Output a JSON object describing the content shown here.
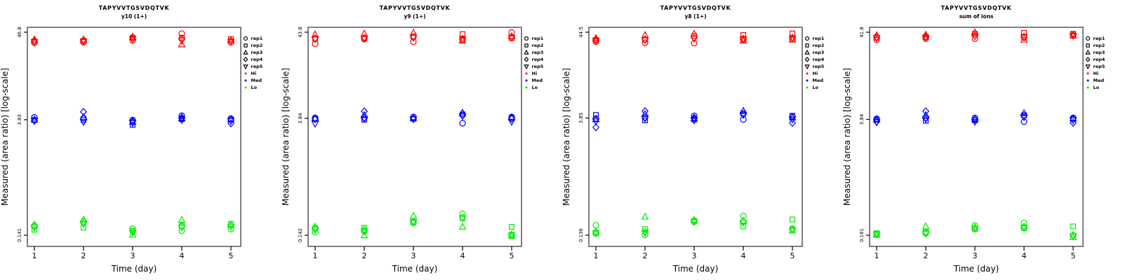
{
  "figure": {
    "title": "TAPYVVTGSVDQTVK",
    "xlabel": "Time (day)",
    "ylabel": "Measured (area ratio) [log-scale]"
  },
  "legend": {
    "items": [
      {
        "label": "rep1",
        "marker": "circle",
        "kind": "rep"
      },
      {
        "label": "rep2",
        "marker": "square",
        "kind": "rep"
      },
      {
        "label": "rep3",
        "marker": "triangle-up",
        "kind": "rep"
      },
      {
        "label": "rep4",
        "marker": "diamond",
        "kind": "rep"
      },
      {
        "label": "rep5",
        "marker": "triangle-down",
        "kind": "rep"
      },
      {
        "label": "Hi",
        "dot": "#FF0000",
        "kind": "level"
      },
      {
        "label": "Med",
        "dot": "#0000FF",
        "kind": "level"
      },
      {
        "label": "Lo",
        "dot": "#00EE00",
        "kind": "level"
      }
    ]
  },
  "chart_data": [
    {
      "type": "scatter",
      "title": "TAPYVVTGSVDQTVK",
      "subtitle": "y10 (1+)",
      "xlabel": "Time (day)",
      "ylabel": "Measured (area ratio) [log-scale]",
      "x": [
        1,
        2,
        3,
        4,
        5
      ],
      "yscale": "log",
      "yticks": [
        46.8,
        3.83,
        0.141
      ],
      "ytick_labels": [
        "46.8",
        "3.83",
        "0.141"
      ],
      "replicates": [
        "rep1",
        "rep2",
        "rep3",
        "rep4",
        "rep5"
      ],
      "markers": [
        "circle",
        "square",
        "triangle-up",
        "diamond",
        "triangle-down"
      ],
      "series": [
        {
          "name": "Hi",
          "color": "#FF0000",
          "values": [
            [
              34.5,
              36.0,
              38.0,
              36.5,
              35.5
            ],
            [
              35.0,
              36.5,
              38.0,
              37.0,
              36.0
            ],
            [
              37.0,
              40.0,
              41.0,
              39.0,
              38.5
            ],
            [
              45.0,
              40.0,
              33.0,
              38.0,
              37.0
            ],
            [
              34.8,
              38.5,
              37.0,
              36.5,
              36.0
            ]
          ]
        },
        {
          "name": "Med",
          "color": "#0000FF",
          "values": [
            [
              4.1,
              3.8,
              3.85,
              3.75,
              3.7
            ],
            [
              4.0,
              3.8,
              4.1,
              4.8,
              3.6
            ],
            [
              3.8,
              3.3,
              3.6,
              3.7,
              3.5
            ],
            [
              4.3,
              3.9,
              4.0,
              4.1,
              3.8
            ],
            [
              3.95,
              3.85,
              3.9,
              3.45,
              3.7
            ]
          ]
        },
        {
          "name": "Lo",
          "color": "#00EE00",
          "values": [
            [
              0.185,
              0.165,
              0.19,
              0.18,
              0.175
            ],
            [
              0.21,
              0.175,
              0.22,
              0.2,
              0.195
            ],
            [
              0.17,
              0.16,
              0.143,
              0.158,
              0.152
            ],
            [
              0.16,
              0.185,
              0.218,
              0.18,
              0.175
            ],
            [
              0.168,
              0.195,
              0.19,
              0.185,
              0.18
            ]
          ]
        }
      ]
    },
    {
      "type": "scatter",
      "title": "TAPYVVTGSVDQTVK",
      "subtitle": "y9 (1+)",
      "xlabel": "Time (day)",
      "ylabel": "Measured (area ratio) [log-scale]",
      "x": [
        1,
        2,
        3,
        4,
        5
      ],
      "yscale": "log",
      "yticks": [
        43.8,
        3.84,
        0.142
      ],
      "ytick_labels": [
        "43.8",
        "3.84",
        "0.142"
      ],
      "replicates": [
        "rep1",
        "rep2",
        "rep3",
        "rep4",
        "rep5"
      ],
      "markers": [
        "circle",
        "square",
        "triangle-up",
        "diamond",
        "triangle-down"
      ],
      "series": [
        {
          "name": "Hi",
          "color": "#FF0000",
          "values": [
            [
              31.5,
              36.5,
              41.0,
              37.0,
              36.0
            ],
            [
              36.0,
              37.0,
              42.0,
              37.5,
              36.5
            ],
            [
              33.5,
              39.0,
              43.0,
              38.0,
              37.5
            ],
            [
              35.0,
              41.5,
              34.5,
              36.5,
              36.0
            ],
            [
              43.5,
              37.0,
              39.0,
              38.0,
              37.5
            ]
          ]
        },
        {
          "name": "Med",
          "color": "#0000FF",
          "values": [
            [
              3.9,
              3.8,
              3.85,
              3.75,
              3.3
            ],
            [
              3.9,
              3.7,
              4.2,
              4.7,
              3.8
            ],
            [
              4.0,
              3.8,
              3.9,
              3.85,
              3.75
            ],
            [
              3.35,
              4.3,
              4.5,
              4.2,
              4.1
            ],
            [
              4.0,
              3.9,
              3.95,
              3.8,
              3.5
            ]
          ]
        },
        {
          "name": "Lo",
          "color": "#00EE00",
          "values": [
            [
              0.155,
              0.172,
              0.18,
              0.17,
              0.165
            ],
            [
              0.16,
              0.175,
              0.141,
              0.165,
              0.158
            ],
            [
              0.2,
              0.207,
              0.245,
              0.21,
              0.205
            ],
            [
              0.26,
              0.228,
              0.18,
              0.235,
              0.23
            ],
            [
              0.142,
              0.18,
              0.139,
              0.145,
              0.143
            ]
          ]
        }
      ]
    },
    {
      "type": "scatter",
      "title": "TAPYVVTGSVDQTVK",
      "subtitle": "y8 (1+)",
      "xlabel": "Time (day)",
      "ylabel": "Measured (area ratio) [log-scale]",
      "x": [
        1,
        2,
        3,
        4,
        5
      ],
      "yscale": "log",
      "yticks": [
        44.5,
        3.85,
        0.136
      ],
      "ytick_labels": [
        "44.5",
        "3.85",
        "0.136"
      ],
      "replicates": [
        "rep1",
        "rep2",
        "rep3",
        "rep4",
        "rep5"
      ],
      "markers": [
        "circle",
        "square",
        "triangle-up",
        "diamond",
        "triangle-down"
      ],
      "series": [
        {
          "name": "Hi",
          "color": "#FF0000",
          "values": [
            [
              34.0,
              35.5,
              37.5,
              36.0,
              35.0
            ],
            [
              33.0,
              36.0,
              41.0,
              36.5,
              35.5
            ],
            [
              32.6,
              40.0,
              42.5,
              38.0,
              37.0
            ],
            [
              36.0,
              41.0,
              35.0,
              37.0,
              36.5
            ],
            [
              36.5,
              43.0,
              36.0,
              38.0,
              37.5
            ]
          ]
        },
        {
          "name": "Med",
          "color": "#0000FF",
          "values": [
            [
              3.8,
              4.2,
              3.7,
              2.95,
              3.5
            ],
            [
              3.9,
              3.6,
              4.3,
              4.68,
              3.8
            ],
            [
              4.1,
              3.7,
              3.8,
              3.9,
              3.6
            ],
            [
              3.7,
              4.4,
              4.7,
              4.3,
              4.2
            ],
            [
              4.0,
              4.1,
              3.9,
              3.35,
              3.7
            ]
          ]
        },
        {
          "name": "Lo",
          "color": "#00EE00",
          "values": [
            [
              0.18,
              0.142,
              0.15,
              0.148,
              0.145
            ],
            [
              0.137,
              0.162,
              0.23,
              0.15,
              0.145
            ],
            [
              0.2,
              0.205,
              0.21,
              0.2,
              0.198
            ],
            [
              0.235,
              0.175,
              0.205,
              0.2,
              0.195
            ],
            [
              0.165,
              0.213,
              0.155,
              0.16,
              0.158
            ]
          ]
        }
      ]
    },
    {
      "type": "scatter",
      "title": "TAPYVVTGSVDQTVK",
      "subtitle": "sum of ions",
      "xlabel": "Time (day)",
      "ylabel": "Measured (area ratio) [log-scale]",
      "x": [
        1,
        2,
        3,
        4,
        5
      ],
      "yscale": "log",
      "yticks": [
        41.8,
        3.84,
        0.161
      ],
      "ytick_labels": [
        "41.8",
        "3.84",
        "0.161"
      ],
      "replicates": [
        "rep1",
        "rep2",
        "rep3",
        "rep4",
        "rep5"
      ],
      "markers": [
        "circle",
        "square",
        "triangle-up",
        "diamond",
        "triangle-down"
      ],
      "series": [
        {
          "name": "Hi",
          "color": "#FF0000",
          "values": [
            [
              34.0,
              36.0,
              38.5,
              36.5,
              35.5
            ],
            [
              35.0,
              36.5,
              39.0,
              37.0,
              36.0
            ],
            [
              35.0,
              40.0,
              41.5,
              38.0,
              37.5
            ],
            [
              36.0,
              41.0,
              34.0,
              37.0,
              36.5
            ],
            [
              39.5,
              40.0,
              38.0,
              38.5,
              38.0
            ]
          ]
        },
        {
          "name": "Med",
          "color": "#0000FF",
          "values": [
            [
              3.9,
              3.8,
              3.85,
              3.6,
              3.55
            ],
            [
              4.0,
              3.7,
              4.3,
              4.8,
              3.9
            ],
            [
              4.0,
              3.75,
              3.9,
              3.85,
              3.6
            ],
            [
              3.6,
              4.3,
              4.55,
              4.2,
              4.1
            ],
            [
              4.0,
              3.9,
              3.95,
              3.5,
              3.75
            ]
          ]
        },
        {
          "name": "Lo",
          "color": "#00EE00",
          "values": [
            [
              0.165,
              0.17,
              0.162,
              0.168,
              0.166
            ],
            [
              0.17,
              0.175,
              0.205,
              0.172,
              0.168
            ],
            [
              0.21,
              0.19,
              0.2,
              0.195,
              0.192
            ],
            [
              0.225,
              0.195,
              0.205,
              0.2,
              0.198
            ],
            [
              0.16,
              0.205,
              0.152,
              0.162,
              0.158
            ]
          ]
        }
      ]
    }
  ]
}
